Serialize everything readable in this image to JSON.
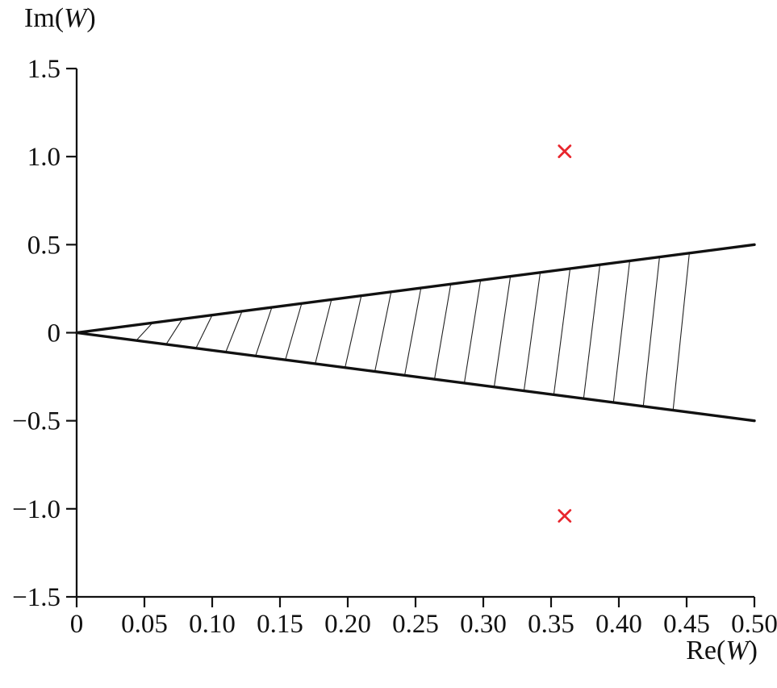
{
  "figure": {
    "background": "#ffffff"
  },
  "chart_data": {
    "type": "line",
    "title": "",
    "xlabel": "Re(W)",
    "ylabel": "Im(W)",
    "xlabel_parts": {
      "prefix": "Re(",
      "symbol": "W",
      "suffix": ")"
    },
    "ylabel_parts": {
      "prefix": "Im(",
      "symbol": "W",
      "suffix": ")"
    },
    "xlim": [
      0,
      0.5
    ],
    "ylim": [
      -1.5,
      1.5
    ],
    "grid": false,
    "legend": "none",
    "axis_color": "#111111",
    "x_ticks": {
      "values": [
        0,
        0.05,
        0.1,
        0.15,
        0.2,
        0.25,
        0.3,
        0.35,
        0.4,
        0.45,
        0.5
      ],
      "labels": [
        "0",
        "0.05",
        "0.10",
        "0.15",
        "0.20",
        "0.25",
        "0.30",
        "0.35",
        "0.40",
        "0.45",
        "0.50"
      ]
    },
    "y_ticks": {
      "values": [
        1.5,
        1.0,
        0.5,
        0,
        -0.5,
        -1.0,
        -1.5
      ],
      "labels": [
        "1.5",
        "1.0",
        "0.5",
        "0",
        "−0.5",
        "−1.0",
        "−1.5"
      ]
    },
    "series": [
      {
        "name": "wedge-upper-boundary",
        "x": [
          0,
          0.5
        ],
        "y": [
          0,
          0.5
        ],
        "color": "#111111",
        "width": 3.4
      },
      {
        "name": "wedge-lower-boundary",
        "x": [
          0,
          0.5
        ],
        "y": [
          0,
          -0.5
        ],
        "color": "#111111",
        "width": 3.4
      }
    ],
    "hatch": {
      "region": "wedge between y = x and y = −x, hatched",
      "x_positions": [
        0.05,
        0.072,
        0.094,
        0.116,
        0.138,
        0.16,
        0.182,
        0.204,
        0.226,
        0.248,
        0.27,
        0.292,
        0.314,
        0.336,
        0.358,
        0.38,
        0.402,
        0.424,
        0.446
      ],
      "slant_dx": 0.006,
      "color": "#222222",
      "width": 1.1
    },
    "markers": [
      {
        "x": 0.36,
        "y": 1.03,
        "symbol": "x",
        "color": "#e8262d",
        "size": 7
      },
      {
        "x": 0.36,
        "y": -1.04,
        "symbol": "x",
        "color": "#e8262d",
        "size": 7
      }
    ]
  }
}
